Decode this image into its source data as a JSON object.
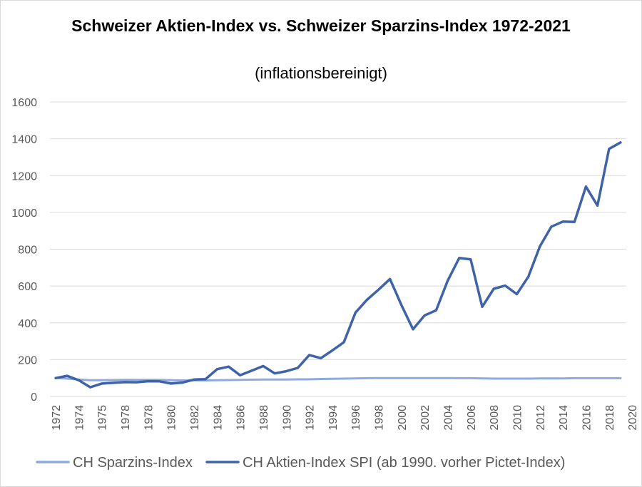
{
  "chart_data": {
    "type": "line",
    "title": "Schweizer Aktien-Index vs. Schweizer Sparzins-Index 1972-2021",
    "subtitle": "(inflationsbereinigt)",
    "xlabel": "",
    "ylabel": "",
    "ylim": [
      0,
      1600
    ],
    "yticks": [
      0,
      200,
      400,
      600,
      800,
      1000,
      1200,
      1400,
      1600
    ],
    "x": [
      1972,
      1973,
      1974,
      1975,
      1976,
      1977,
      1978,
      1979,
      1980,
      1981,
      1982,
      1983,
      1984,
      1985,
      1986,
      1987,
      1988,
      1989,
      1990,
      1991,
      1992,
      1993,
      1994,
      1995,
      1996,
      1997,
      1998,
      1999,
      2000,
      2001,
      2002,
      2003,
      2004,
      2005,
      2006,
      2007,
      2008,
      2009,
      2010,
      2011,
      2012,
      2013,
      2014,
      2015,
      2016,
      2017,
      2018,
      2019,
      2020,
      2021
    ],
    "xtick_labels": [
      "1972",
      "1974",
      "1975",
      "1978",
      "1978",
      "1980",
      "1982",
      "1984",
      "1986",
      "1988",
      "1990",
      "1992",
      "1994",
      "1996",
      "1998",
      "2000",
      "2002",
      "2004",
      "2006",
      "2008",
      "2010",
      "2012",
      "2014",
      "2016",
      "2018",
      "2020"
    ],
    "grid": true,
    "legend_position": "bottom",
    "series": [
      {
        "name": "CH Sparzins-Index",
        "color": "#8FAADC",
        "values": [
          100,
          97,
          92,
          88,
          88,
          89,
          90,
          90,
          90,
          90,
          88,
          87,
          87,
          87,
          88,
          89,
          90,
          91,
          92,
          92,
          92,
          93,
          93,
          95,
          96,
          97,
          98,
          99,
          100,
          100,
          100,
          100,
          100,
          100,
          100,
          99,
          99,
          98,
          97,
          97,
          97,
          97,
          98,
          98,
          98,
          99,
          99,
          99,
          99,
          99
        ]
      },
      {
        "name": "CH Aktien-Index SPI (ab 1990. vorher Pictet-Index)",
        "color": "#3F63A8",
        "values": [
          100,
          112,
          88,
          50,
          70,
          74,
          78,
          77,
          83,
          82,
          70,
          75,
          92,
          94,
          148,
          162,
          115,
          140,
          165,
          125,
          137,
          155,
          225,
          208,
          250,
          295,
          455,
          525,
          580,
          638,
          495,
          365,
          440,
          468,
          628,
          752,
          745,
          487,
          585,
          602,
          556,
          650,
          815,
          923,
          950,
          948,
          1140,
          1037,
          1345,
          1380
        ]
      }
    ]
  }
}
